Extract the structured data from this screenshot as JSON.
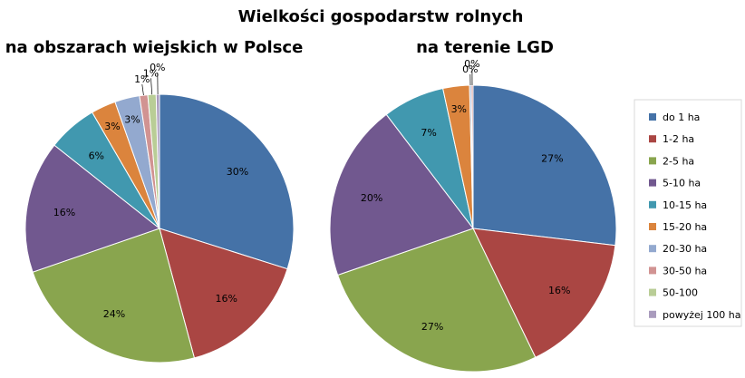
{
  "chart_data": {
    "type": "pie",
    "title": "Wielkości gospodarstw rolnych",
    "legend_position": "right",
    "categories": [
      "do 1 ha",
      "1-2 ha",
      "2-5 ha",
      "5-10 ha",
      "10-15 ha",
      "15-20 ha",
      "20-30 ha",
      "30-50 ha",
      "50-100",
      "powyżej 100 ha"
    ],
    "colors": [
      "#4572A7",
      "#AA4643",
      "#89A54E",
      "#71588F",
      "#4198AF",
      "#DB843D",
      "#93A9CF",
      "#D19392",
      "#B9CD96",
      "#A99BBD"
    ],
    "series": [
      {
        "name": "na obszarach wiejskich w Polsce",
        "values": [
          30,
          16,
          24,
          16,
          6,
          3,
          3,
          1,
          1,
          0.4
        ],
        "labels": [
          "30%",
          "16%",
          "24%",
          "16%",
          "6%",
          "3%",
          "3%",
          "1%",
          "1%",
          "0%"
        ]
      },
      {
        "name": "na terenie LGD",
        "values": [
          27,
          16,
          27,
          20,
          7,
          3,
          0.2,
          0.2,
          0,
          0
        ],
        "labels": [
          "27%",
          "16%",
          "27%",
          "20%",
          "7%",
          "3%",
          "0%",
          "0%",
          "",
          ""
        ]
      }
    ]
  }
}
